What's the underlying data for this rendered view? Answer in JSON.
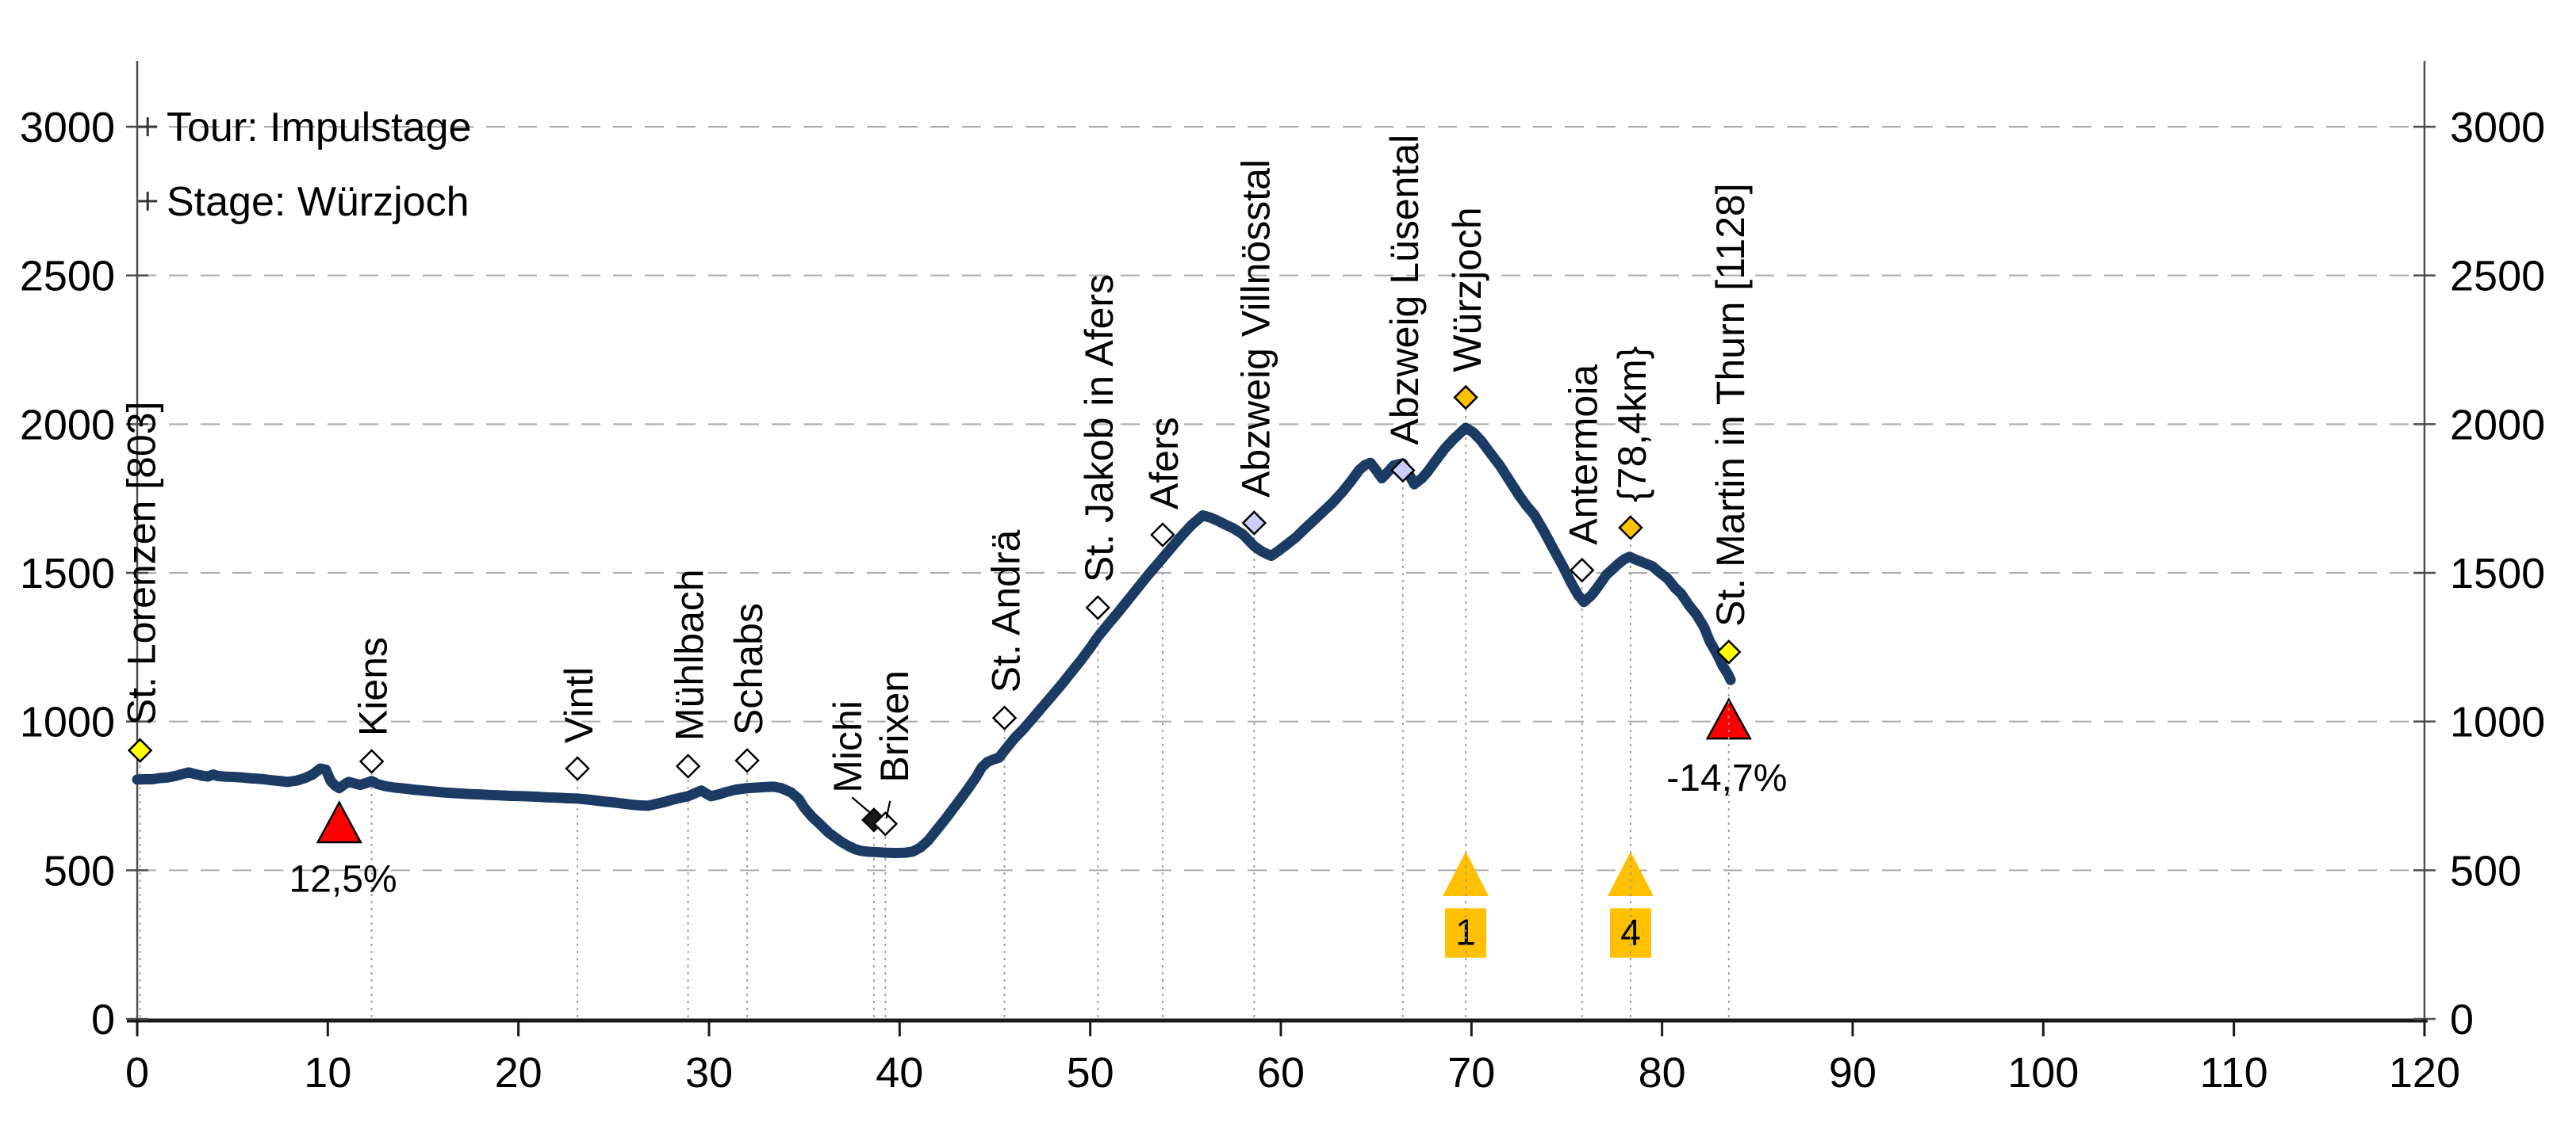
{
  "chart_data": {
    "type": "line",
    "title": "",
    "annotations": [
      {
        "label": "Tour: Impulstage",
        "elev": 3000
      },
      {
        "label": "Stage: Würzjoch",
        "elev": 2750
      }
    ],
    "x_axis": {
      "min": 0,
      "max": 120,
      "tick_step": 10,
      "tick_labels": [
        "0",
        "10",
        "20",
        "30",
        "40",
        "50",
        "60",
        "70",
        "80",
        "90",
        "100",
        "110",
        "120"
      ]
    },
    "y_axis": {
      "min": 0,
      "max": 3000,
      "tick_step": 500,
      "tick_labels_left": [
        "0",
        "500",
        "1000",
        "1500",
        "2000",
        "2500",
        "3000"
      ],
      "tick_labels_right": [
        "0",
        "500",
        "1000",
        "1500",
        "2000",
        "2500",
        "3000"
      ],
      "grid": "dashed horizontal at each 500 m"
    },
    "series": [
      {
        "name": "elevation-profile",
        "color": "#1B3A64",
        "points": [
          [
            0,
            805
          ],
          [
            0.4,
            806
          ],
          [
            0.8,
            806
          ],
          [
            1.2,
            810
          ],
          [
            1.6,
            812
          ],
          [
            2,
            817
          ],
          [
            2.4,
            824
          ],
          [
            2.7,
            829
          ],
          [
            3,
            824
          ],
          [
            3.4,
            818
          ],
          [
            3.7,
            815
          ],
          [
            4,
            822
          ],
          [
            4.2,
            817
          ],
          [
            4.6,
            815
          ],
          [
            5,
            814
          ],
          [
            5.5,
            812
          ],
          [
            6,
            809
          ],
          [
            6.5,
            807
          ],
          [
            7,
            803
          ],
          [
            7.5,
            800
          ],
          [
            7.9,
            797
          ],
          [
            8.4,
            802
          ],
          [
            8.8,
            810
          ],
          [
            9.2,
            822
          ],
          [
            9.6,
            842
          ],
          [
            9.9,
            838
          ],
          [
            10.15,
            800
          ],
          [
            10.4,
            784
          ],
          [
            10.6,
            776
          ],
          [
            10.9,
            790
          ],
          [
            11.1,
            797
          ],
          [
            11.4,
            792
          ],
          [
            11.7,
            787
          ],
          [
            12,
            793
          ],
          [
            12.3,
            800
          ],
          [
            12.6,
            790
          ],
          [
            13,
            783
          ],
          [
            13.5,
            778
          ],
          [
            14,
            775
          ],
          [
            14.5,
            771
          ],
          [
            15,
            768
          ],
          [
            15.5,
            765
          ],
          [
            16,
            762
          ],
          [
            16.5,
            760
          ],
          [
            17,
            758
          ],
          [
            17.5,
            756
          ],
          [
            18,
            755
          ],
          [
            18.5,
            753
          ],
          [
            19,
            752
          ],
          [
            19.6,
            750
          ],
          [
            20.3,
            749
          ],
          [
            21,
            747
          ],
          [
            21.5,
            745
          ],
          [
            22,
            744
          ],
          [
            22.6,
            742
          ],
          [
            23.1,
            741
          ],
          [
            23.6,
            738
          ],
          [
            24,
            735
          ],
          [
            24.5,
            731
          ],
          [
            25,
            728
          ],
          [
            25.5,
            724
          ],
          [
            26,
            720
          ],
          [
            26.4,
            718
          ],
          [
            26.8,
            717
          ],
          [
            27.3,
            724
          ],
          [
            27.7,
            730
          ],
          [
            28,
            736
          ],
          [
            28.4,
            742
          ],
          [
            28.9,
            749
          ],
          [
            29.3,
            760
          ],
          [
            29.6,
            768
          ],
          [
            29.9,
            756
          ],
          [
            30.1,
            749
          ],
          [
            30.5,
            755
          ],
          [
            30.9,
            763
          ],
          [
            31.4,
            771
          ],
          [
            32,
            776
          ],
          [
            32.5,
            778
          ],
          [
            33,
            780
          ],
          [
            33.4,
            781
          ],
          [
            33.8,
            776
          ],
          [
            34.3,
            762
          ],
          [
            34.7,
            740
          ],
          [
            35,
            710
          ],
          [
            35.4,
            680
          ],
          [
            35.8,
            656
          ],
          [
            36.3,
            625
          ],
          [
            36.9,
            597
          ],
          [
            37.3,
            582
          ],
          [
            37.7,
            570
          ],
          [
            38,
            565
          ],
          [
            38.4,
            562
          ],
          [
            38.8,
            561
          ],
          [
            39.3,
            559
          ],
          [
            39.8,
            558
          ],
          [
            40.3,
            559
          ],
          [
            40.7,
            563
          ],
          [
            41.1,
            577
          ],
          [
            41.5,
            600
          ],
          [
            42,
            640
          ],
          [
            42.4,
            672
          ],
          [
            42.8,
            706
          ],
          [
            43.2,
            740
          ],
          [
            43.6,
            775
          ],
          [
            44,
            812
          ],
          [
            44.3,
            845
          ],
          [
            44.6,
            864
          ],
          [
            44.9,
            872
          ],
          [
            45.2,
            878
          ],
          [
            45.6,
            910
          ],
          [
            46,
            942
          ],
          [
            46.5,
            975
          ],
          [
            47,
            1012
          ],
          [
            47.5,
            1050
          ],
          [
            48,
            1087
          ],
          [
            48.5,
            1125
          ],
          [
            49,
            1165
          ],
          [
            49.5,
            1205
          ],
          [
            50,
            1248
          ],
          [
            50.4,
            1285
          ],
          [
            51,
            1332
          ],
          [
            51.5,
            1370
          ],
          [
            52,
            1410
          ],
          [
            52.5,
            1450
          ],
          [
            53,
            1490
          ],
          [
            53.4,
            1520
          ],
          [
            53.8,
            1550
          ],
          [
            54.3,
            1588
          ],
          [
            54.8,
            1625
          ],
          [
            55.3,
            1660
          ],
          [
            55.9,
            1693
          ],
          [
            56.3,
            1686
          ],
          [
            56.6,
            1678
          ],
          [
            57,
            1665
          ],
          [
            57.5,
            1650
          ],
          [
            58,
            1630
          ],
          [
            58.6,
            1590
          ],
          [
            59,
            1572
          ],
          [
            59.5,
            1557
          ],
          [
            59.9,
            1575
          ],
          [
            60.3,
            1595
          ],
          [
            60.8,
            1620
          ],
          [
            61.2,
            1645
          ],
          [
            61.7,
            1675
          ],
          [
            62.2,
            1705
          ],
          [
            62.7,
            1735
          ],
          [
            63.2,
            1770
          ],
          [
            63.7,
            1810
          ],
          [
            64.1,
            1845
          ],
          [
            64.4,
            1862
          ],
          [
            64.7,
            1870
          ],
          [
            65,
            1845
          ],
          [
            65.3,
            1818
          ],
          [
            65.6,
            1838
          ],
          [
            65.9,
            1860
          ],
          [
            66.2,
            1866
          ],
          [
            66.4,
            1868
          ],
          [
            66.7,
            1835
          ],
          [
            67,
            1798
          ],
          [
            67.4,
            1818
          ],
          [
            67.7,
            1840
          ],
          [
            68.1,
            1875
          ],
          [
            68.6,
            1918
          ],
          [
            69.1,
            1952
          ],
          [
            69.7,
            1988
          ],
          [
            70.1,
            1972
          ],
          [
            70.5,
            1945
          ],
          [
            71,
            1902
          ],
          [
            71.5,
            1860
          ],
          [
            72,
            1810
          ],
          [
            72.5,
            1760
          ],
          [
            72.9,
            1725
          ],
          [
            73.3,
            1695
          ],
          [
            73.8,
            1640
          ],
          [
            74.3,
            1580
          ],
          [
            74.8,
            1522
          ],
          [
            75.2,
            1470
          ],
          [
            75.6,
            1425
          ],
          [
            75.9,
            1402
          ],
          [
            76.3,
            1425
          ],
          [
            76.6,
            1450
          ],
          [
            77.1,
            1495
          ],
          [
            77.4,
            1512
          ],
          [
            77.7,
            1530
          ],
          [
            78,
            1545
          ],
          [
            78.3,
            1554
          ],
          [
            78.6,
            1545
          ],
          [
            79,
            1535
          ],
          [
            79.5,
            1522
          ],
          [
            79.9,
            1500
          ],
          [
            80.3,
            1480
          ],
          [
            80.7,
            1448
          ],
          [
            81,
            1430
          ],
          [
            81.4,
            1392
          ],
          [
            81.8,
            1360
          ],
          [
            82.2,
            1318
          ],
          [
            82.5,
            1270
          ],
          [
            82.9,
            1225
          ],
          [
            83.2,
            1185
          ],
          [
            83.45,
            1160
          ],
          [
            83.6,
            1140
          ]
        ]
      }
    ],
    "waypoints": [
      {
        "km": 0.15,
        "label": "St. Lorenzen [803]",
        "marker_elev": 903,
        "marker": "diamond",
        "fill": "yellow"
      },
      {
        "km": 12.3,
        "label": "Kiens",
        "marker_elev": 866,
        "marker": "diamond",
        "fill": "white"
      },
      {
        "km": 23.1,
        "label": "Vintl",
        "marker_elev": 842,
        "marker": "diamond",
        "fill": "white"
      },
      {
        "km": 28.9,
        "label": "Mühlbach",
        "marker_elev": 850,
        "marker": "diamond",
        "fill": "white"
      },
      {
        "km": 32.0,
        "label": "Schabs",
        "marker_elev": 869,
        "marker": "diamond",
        "fill": "white"
      },
      {
        "km": 38.65,
        "label": "Michi",
        "marker_elev": 669,
        "marker": "diamond",
        "fill": "black",
        "label_km": 37.2,
        "label_bottom_elev": 760,
        "leader": [
          [
            37.5,
            745
          ],
          [
            38.55,
            688
          ]
        ]
      },
      {
        "km": 39.25,
        "label": "Brixen",
        "marker_elev": 656,
        "marker": "diamond",
        "fill": "white",
        "label_km": 39.65,
        "label_bottom_elev": 795,
        "leader": [
          [
            39.5,
            733
          ],
          [
            39.3,
            674
          ]
        ]
      },
      {
        "km": 45.5,
        "label": "St. Andrä",
        "marker_elev": 1012,
        "marker": "diamond",
        "fill": "white"
      },
      {
        "km": 50.4,
        "label": "St. Jakob in Afers",
        "marker_elev": 1383,
        "marker": "diamond",
        "fill": "white"
      },
      {
        "km": 53.8,
        "label": "Afers",
        "marker_elev": 1628,
        "marker": "diamond",
        "fill": "white"
      },
      {
        "km": 58.6,
        "label": "Abzweig Villnösstal",
        "marker_elev": 1668,
        "marker": "diamond",
        "fill": "lavender"
      },
      {
        "km": 66.4,
        "label": "Abzweig Lüsental",
        "marker_elev": 1845,
        "marker": "diamond",
        "fill": "lavender"
      },
      {
        "km": 69.7,
        "label": "Würzjoch",
        "marker_elev": 2090,
        "marker": "diamond",
        "fill": "orange"
      },
      {
        "km": 75.8,
        "label": "Antermoia",
        "marker_elev": 1509,
        "marker": "diamond",
        "fill": "white"
      },
      {
        "km": 78.35,
        "label": "{78,4km}",
        "marker_elev": 1652,
        "marker": "diamond",
        "fill": "orange"
      },
      {
        "km": 83.5,
        "label": "St. Martin in Thurn [1128]",
        "marker_elev": 1234,
        "marker": "diamond",
        "fill": "yellow"
      }
    ],
    "gradient_markers": [
      {
        "km": 10.6,
        "text": "12,5%",
        "text_km": 10.8,
        "text_elev": 470,
        "base_elev": 594,
        "tip_elev": 728
      },
      {
        "km": 83.5,
        "text": "-14,7%",
        "text_km": 83.4,
        "text_elev": 810,
        "base_elev": 943,
        "tip_elev": 1074
      }
    ],
    "flags": [
      {
        "km": 69.7,
        "number": "1",
        "triangle_base_elev": 413,
        "triangle_tip_elev": 563,
        "square_top_elev": 372,
        "square_bottom_elev": 206
      },
      {
        "km": 78.35,
        "number": "4",
        "triangle_base_elev": 413,
        "triangle_tip_elev": 563,
        "square_top_elev": 372,
        "square_bottom_elev": 206
      }
    ],
    "colors": {
      "line": "#1B3A64",
      "yellow": "#FFFF00",
      "orange": "#FFC000",
      "white": "#FFFFFF",
      "lavender": "#CCCCFF",
      "black": "#1A1A1A",
      "red": "#FF0000",
      "flag_gold": "#FFC000",
      "grid": "#ABABAB",
      "dotted": "#9A9A9A",
      "axis_y": "#4D4D4D",
      "axis_x": "#1A1A1A"
    },
    "legend_position": "top-left inside plot",
    "xlim": [
      0,
      120
    ],
    "ylim": [
      0,
      3000
    ]
  }
}
